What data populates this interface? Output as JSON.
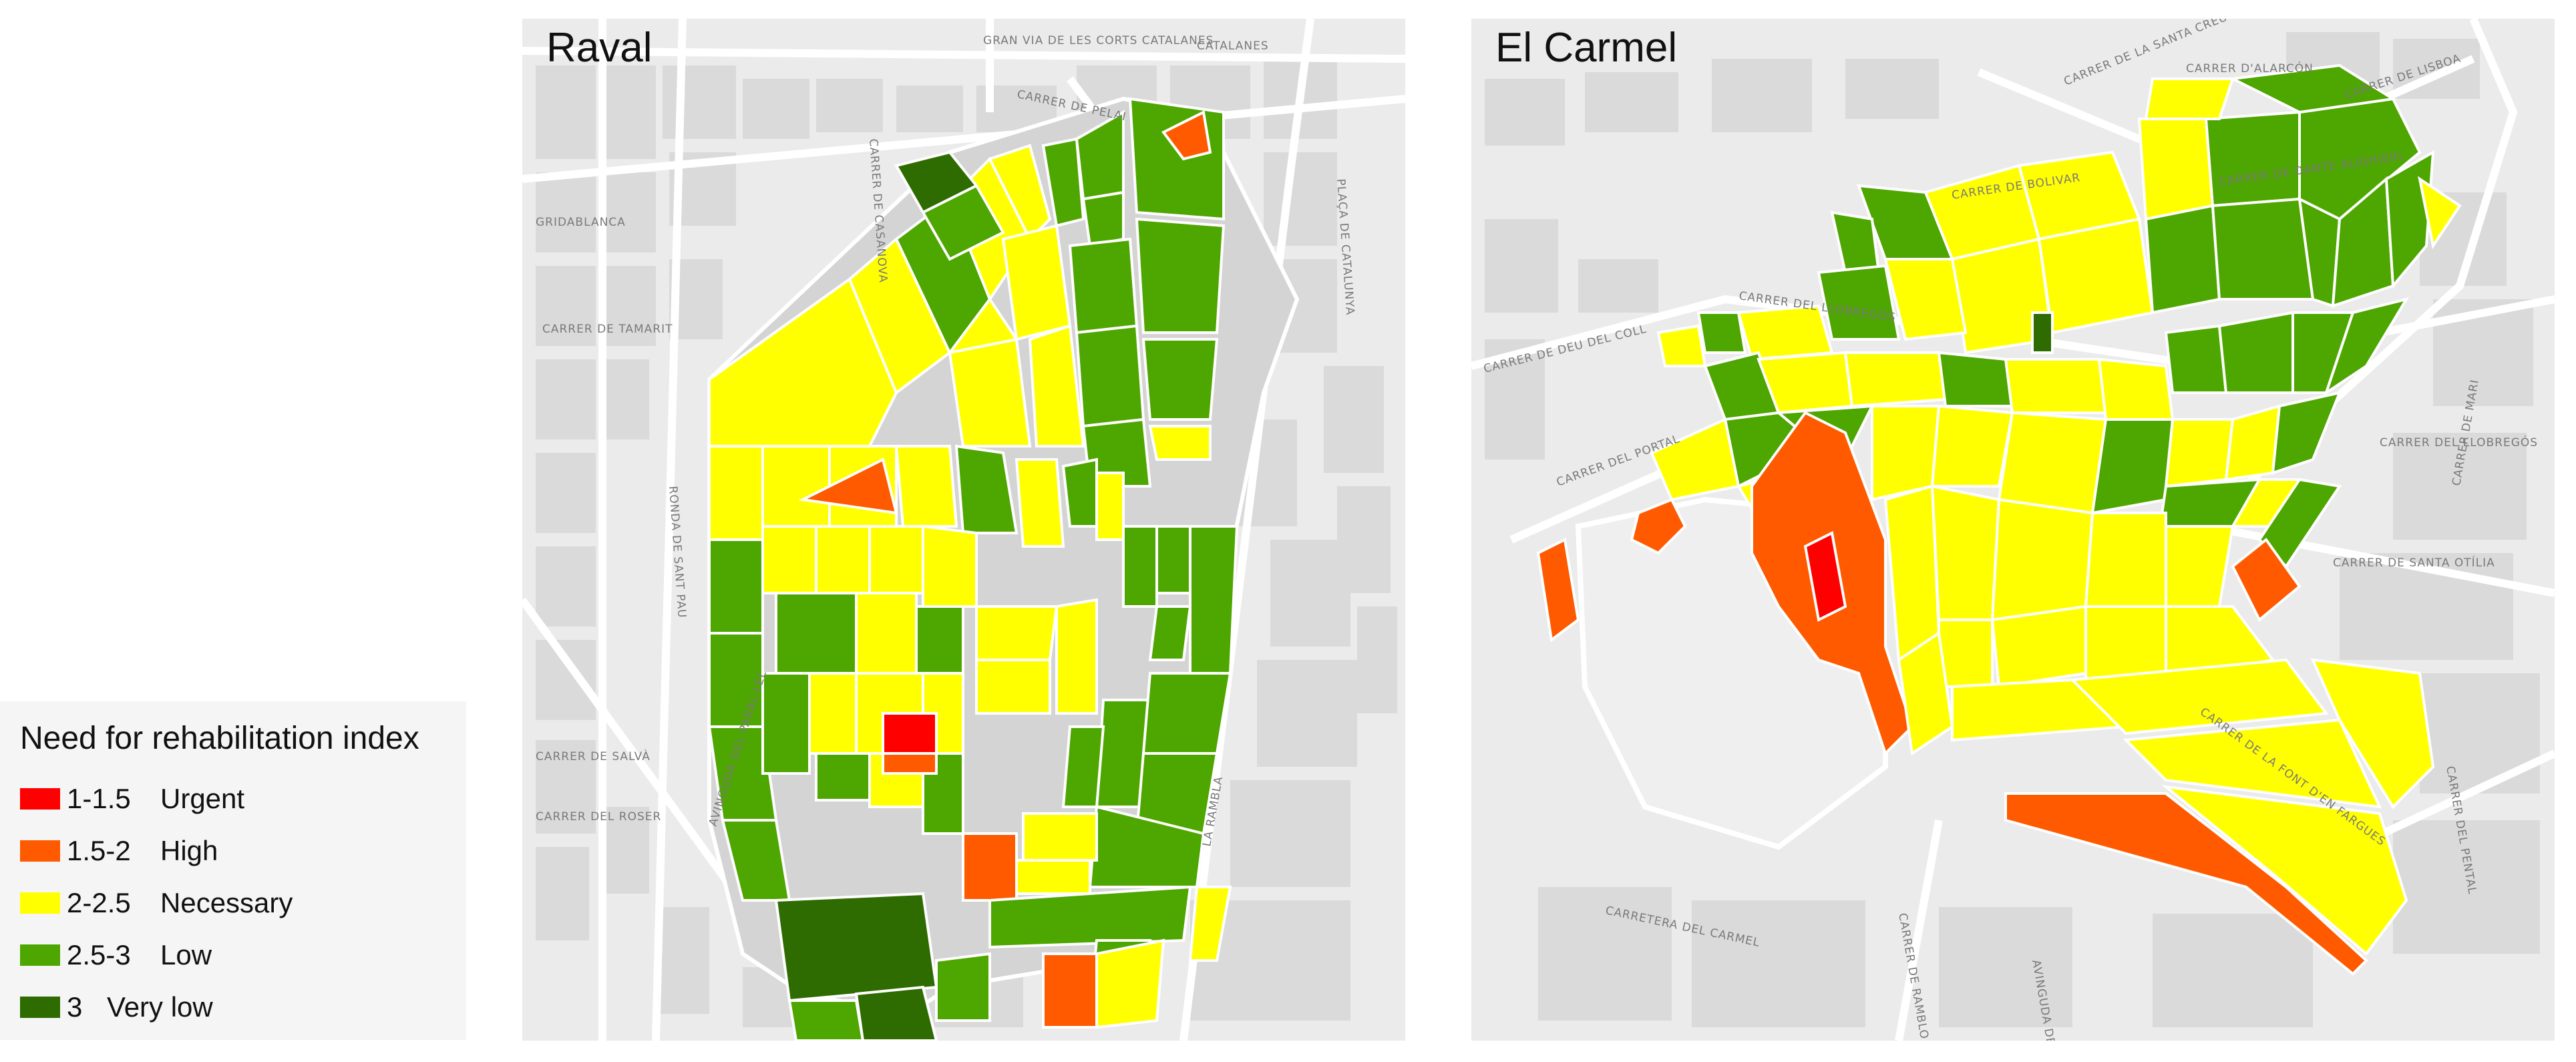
{
  "legend": {
    "title": "Need for rehabilitation index",
    "items": [
      {
        "range": "1-1.5",
        "label": "Urgent",
        "color": "#ff0000"
      },
      {
        "range": "1.5-2",
        "label": "High",
        "color": "#ff5a00"
      },
      {
        "range": "2-2.5",
        "label": "Necessary",
        "color": "#ffff00"
      },
      {
        "range": "2.5-3",
        "label": "Low",
        "color": "#4ea600"
      },
      {
        "range": "3",
        "label": "Very low",
        "color": "#2e6b00"
      }
    ]
  },
  "maps": [
    {
      "title": "Raval",
      "streets": [
        "CATALANES",
        "GRAN VIA DE LES CORTS CATALANES",
        "CARRER DE CASANOVA",
        "CARRER DE PELAI",
        "PLAÇA DE CATALUNYA",
        "GRIDABLANCA",
        "CARRER DE TAMARIT",
        "RONDA DE SANT PAU",
        "CARRER DE SALVÀ",
        "CARRER DEL ROSER",
        "AVINGUDA DEL PARAL·LEL",
        "LA RAMBLA"
      ]
    },
    {
      "title": "El Carmel",
      "streets": [
        "CARRER D'ALARCÓN",
        "CARRER DE LA SANTA CREU",
        "CARRER DE LISBOA",
        "CARRER DE DANTE ALIGHIERI",
        "CARRER DE BOLIVAR",
        "CARRER DEL LLOBREGÓS",
        "CARRER DE DEU DEL COLL",
        "CARRER DEL PORTAL",
        "CARRER DE MARI",
        "CARRER DE SANTA OTÍLIA",
        "CARRETERA DEL CARMEL",
        "AVINGUDA DE",
        "CARRER DE RAMBLO",
        "CARRER DEL PENTAL",
        "CARRER DE LA FONT D'EN FARGUES"
      ]
    }
  ]
}
